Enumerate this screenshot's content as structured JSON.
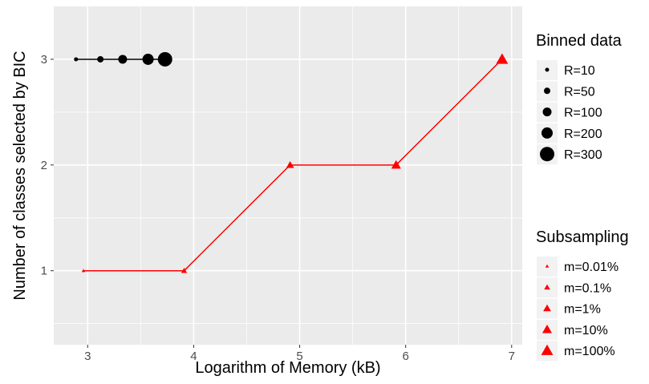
{
  "chart_data": {
    "type": "line",
    "title": "",
    "xlabel": "Logarithm of Memory (kB)",
    "ylabel": "Number of classes selected by BIC",
    "xlim": [
      2.68,
      7.1
    ],
    "ylim": [
      0.3,
      3.5
    ],
    "x_ticks": [
      3,
      4,
      5,
      6,
      7
    ],
    "y_ticks": [
      1,
      2,
      3
    ],
    "grid": true,
    "series": [
      {
        "legend_title": "Binned data",
        "marker": "circle",
        "color": "#000000",
        "points": [
          {
            "x": 2.89,
            "y": 3,
            "label": "R=10"
          },
          {
            "x": 3.12,
            "y": 3,
            "label": "R=50"
          },
          {
            "x": 3.33,
            "y": 3,
            "label": "R=100"
          },
          {
            "x": 3.57,
            "y": 3,
            "label": "R=200"
          },
          {
            "x": 3.73,
            "y": 3,
            "label": "R=300"
          }
        ]
      },
      {
        "legend_title": "Subsampling",
        "marker": "triangle",
        "color": "#ff0000",
        "points": [
          {
            "x": 2.96,
            "y": 1,
            "label": "m=0.01%"
          },
          {
            "x": 3.91,
            "y": 1,
            "label": "m=0.1%"
          },
          {
            "x": 4.91,
            "y": 2,
            "label": "m=1%"
          },
          {
            "x": 5.91,
            "y": 2,
            "label": "m=10%"
          },
          {
            "x": 6.91,
            "y": 3,
            "label": "m=100%"
          }
        ]
      }
    ],
    "legend_position": "right",
    "legends": [
      {
        "title": "Binned data",
        "entries": [
          "R=10",
          "R=50",
          "R=100",
          "R=200",
          "R=300"
        ]
      },
      {
        "title": "Subsampling",
        "entries": [
          "m=0.01%",
          "m=0.1%",
          "m=1%",
          "m=10%",
          "m=100%"
        ]
      }
    ]
  }
}
